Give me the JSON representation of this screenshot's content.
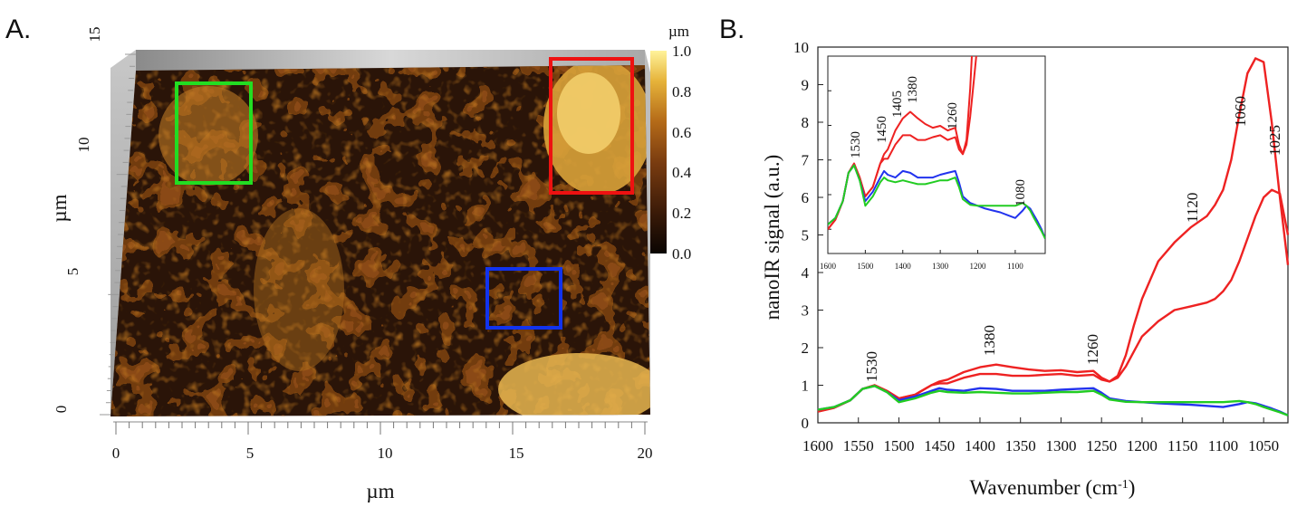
{
  "panels": {
    "a": {
      "letter": "A.",
      "x_axis": {
        "label": "µm",
        "ticks": [
          "0",
          "5",
          "10",
          "15",
          "20"
        ]
      },
      "y_axis": {
        "label": "µm",
        "ticks": [
          "0",
          "5",
          "10",
          "15"
        ]
      },
      "colorbar": {
        "unit": "µm",
        "ticks": [
          "0.0",
          "0.2",
          "0.4",
          "0.6",
          "0.8",
          "1.0"
        ]
      },
      "regions": [
        {
          "name": "green-region",
          "color": "#22dd22"
        },
        {
          "name": "red-region",
          "color": "#ee1111"
        },
        {
          "name": "blue-region",
          "color": "#1133ee"
        }
      ],
      "colors": {
        "low": "#1e0f06",
        "mid": "#8a4a12",
        "high": "#fbe88a"
      }
    },
    "b": {
      "letter": "B."
    }
  },
  "chart_data": {
    "type": "line",
    "xlabel": "Wavenumber (cm",
    "xlabel_sup": "-1",
    "xlabel_end": ")",
    "ylabel": "nanoIR signal (a.u.)",
    "xlim": [
      1600,
      1020
    ],
    "ylim": [
      0,
      10
    ],
    "x_ticks": [
      "1600",
      "1550",
      "1500",
      "1450",
      "1400",
      "1350",
      "1300",
      "1250",
      "1200",
      "1150",
      "1100",
      "1050"
    ],
    "y_ticks": [
      "0",
      "1",
      "2",
      "3",
      "4",
      "5",
      "6",
      "7",
      "8",
      "9",
      "10"
    ],
    "series": [
      {
        "color": "#ee2222",
        "x": [
          1600,
          1580,
          1560,
          1545,
          1530,
          1515,
          1500,
          1480,
          1460,
          1450,
          1440,
          1420,
          1400,
          1380,
          1360,
          1340,
          1320,
          1300,
          1280,
          1260,
          1250,
          1240,
          1230,
          1220,
          1210,
          1200,
          1180,
          1160,
          1140,
          1120,
          1110,
          1100,
          1090,
          1080,
          1070,
          1060,
          1050,
          1040,
          1030,
          1020
        ],
        "y": [
          0.3,
          0.4,
          0.6,
          0.9,
          1.0,
          0.85,
          0.65,
          0.75,
          1.0,
          1.1,
          1.15,
          1.35,
          1.48,
          1.55,
          1.48,
          1.42,
          1.38,
          1.4,
          1.35,
          1.38,
          1.2,
          1.1,
          1.25,
          1.8,
          2.6,
          3.3,
          4.3,
          4.8,
          5.2,
          5.5,
          5.8,
          6.2,
          7.0,
          8.2,
          9.3,
          9.7,
          9.6,
          8.0,
          6.0,
          4.2
        ]
      },
      {
        "color": "#ee2222",
        "x": [
          1600,
          1580,
          1560,
          1545,
          1530,
          1515,
          1500,
          1480,
          1460,
          1450,
          1440,
          1420,
          1400,
          1380,
          1360,
          1340,
          1320,
          1300,
          1280,
          1260,
          1250,
          1240,
          1230,
          1220,
          1210,
          1200,
          1180,
          1160,
          1140,
          1120,
          1110,
          1100,
          1090,
          1080,
          1070,
          1060,
          1050,
          1040,
          1030,
          1020
        ],
        "y": [
          0.3,
          0.4,
          0.6,
          0.9,
          1.0,
          0.85,
          0.65,
          0.75,
          1.0,
          1.05,
          1.05,
          1.2,
          1.3,
          1.3,
          1.25,
          1.25,
          1.28,
          1.3,
          1.25,
          1.28,
          1.15,
          1.1,
          1.2,
          1.5,
          1.9,
          2.3,
          2.7,
          3.0,
          3.1,
          3.2,
          3.3,
          3.5,
          3.8,
          4.3,
          4.9,
          5.5,
          6.0,
          6.2,
          6.1,
          5.0
        ]
      },
      {
        "color": "#2233ee",
        "x": [
          1600,
          1580,
          1560,
          1545,
          1530,
          1515,
          1500,
          1480,
          1460,
          1450,
          1440,
          1420,
          1400,
          1380,
          1360,
          1340,
          1320,
          1300,
          1280,
          1260,
          1250,
          1240,
          1220,
          1200,
          1180,
          1160,
          1140,
          1120,
          1100,
          1080,
          1070,
          1060,
          1050,
          1040,
          1030,
          1020
        ],
        "y": [
          0.35,
          0.42,
          0.6,
          0.9,
          0.98,
          0.82,
          0.6,
          0.7,
          0.85,
          0.92,
          0.88,
          0.85,
          0.92,
          0.9,
          0.85,
          0.85,
          0.85,
          0.88,
          0.9,
          0.92,
          0.8,
          0.65,
          0.58,
          0.55,
          0.52,
          0.5,
          0.48,
          0.45,
          0.42,
          0.5,
          0.55,
          0.52,
          0.45,
          0.38,
          0.3,
          0.2
        ]
      },
      {
        "color": "#22cc22",
        "x": [
          1600,
          1580,
          1560,
          1545,
          1530,
          1515,
          1500,
          1480,
          1460,
          1450,
          1440,
          1420,
          1400,
          1380,
          1360,
          1340,
          1320,
          1300,
          1280,
          1260,
          1250,
          1240,
          1220,
          1200,
          1180,
          1160,
          1140,
          1120,
          1100,
          1080,
          1070,
          1060,
          1050,
          1040,
          1030,
          1020
        ],
        "y": [
          0.35,
          0.42,
          0.6,
          0.9,
          0.98,
          0.82,
          0.55,
          0.65,
          0.8,
          0.85,
          0.82,
          0.8,
          0.82,
          0.8,
          0.78,
          0.78,
          0.8,
          0.82,
          0.82,
          0.85,
          0.75,
          0.62,
          0.56,
          0.55,
          0.55,
          0.55,
          0.55,
          0.55,
          0.55,
          0.58,
          0.55,
          0.5,
          0.42,
          0.35,
          0.28,
          0.2
        ]
      }
    ],
    "peak_labels": [
      "1530",
      "1380",
      "1260",
      "1120",
      "1060",
      "1025"
    ],
    "inset": {
      "xlim": [
        1600,
        1020
      ],
      "ylim": [
        4.3,
        10
      ],
      "x_ticks": [
        "1600",
        "1500",
        "1400",
        "1300",
        "1200",
        "1100"
      ],
      "peak_labels": [
        "1530",
        "1450",
        "1405",
        "1380",
        "1260",
        "1080"
      ]
    }
  }
}
